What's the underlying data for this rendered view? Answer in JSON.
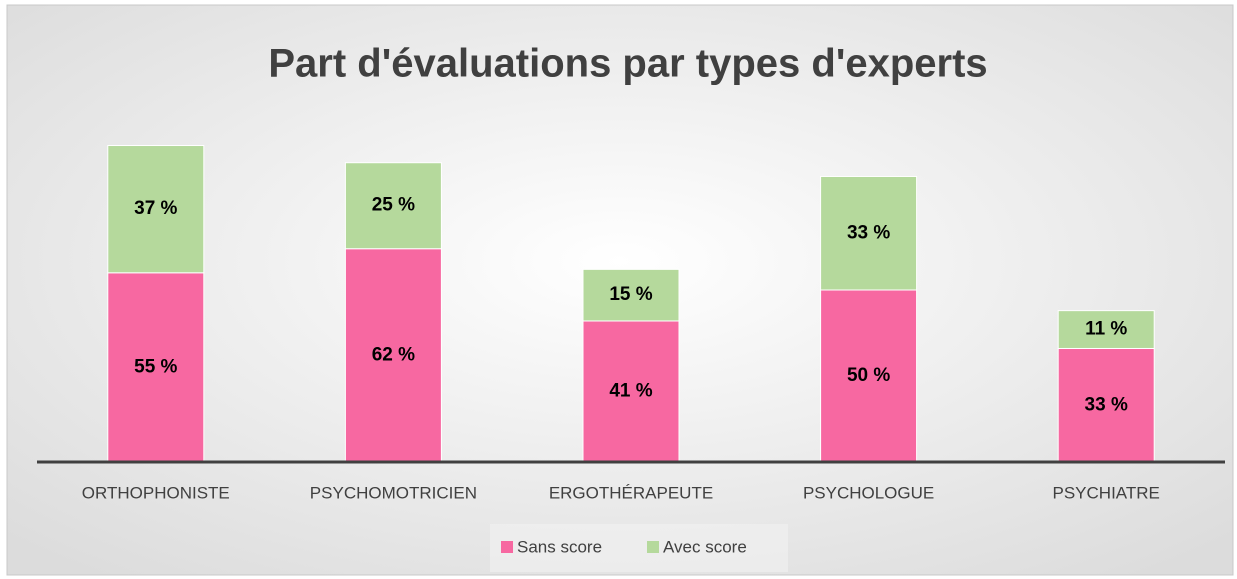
{
  "chart_data": {
    "type": "stacked_bar",
    "title": "Part d'évaluations par types d'experts",
    "categories": [
      "ORTHOPHONISTE",
      "PSYCHOMOTRICIEN",
      "ERGOTHÉRAPEUTE",
      "PSYCHOLOGUE",
      "PSYCHIATRE"
    ],
    "series": [
      {
        "name": "Sans score",
        "color": "#f768a1",
        "values": [
          55,
          62,
          41,
          50,
          33
        ],
        "value_labels": [
          "55 %",
          "62 %",
          "41 %",
          "50 %",
          "33 %"
        ]
      },
      {
        "name": "Avec score",
        "color": "#b5d99c",
        "values": [
          37,
          25,
          15,
          33,
          11
        ],
        "value_labels": [
          "37 %",
          "25 %",
          "15 %",
          "33 %",
          "11 %"
        ]
      }
    ],
    "ylim": [
      0,
      100
    ],
    "legend": "bottom"
  }
}
